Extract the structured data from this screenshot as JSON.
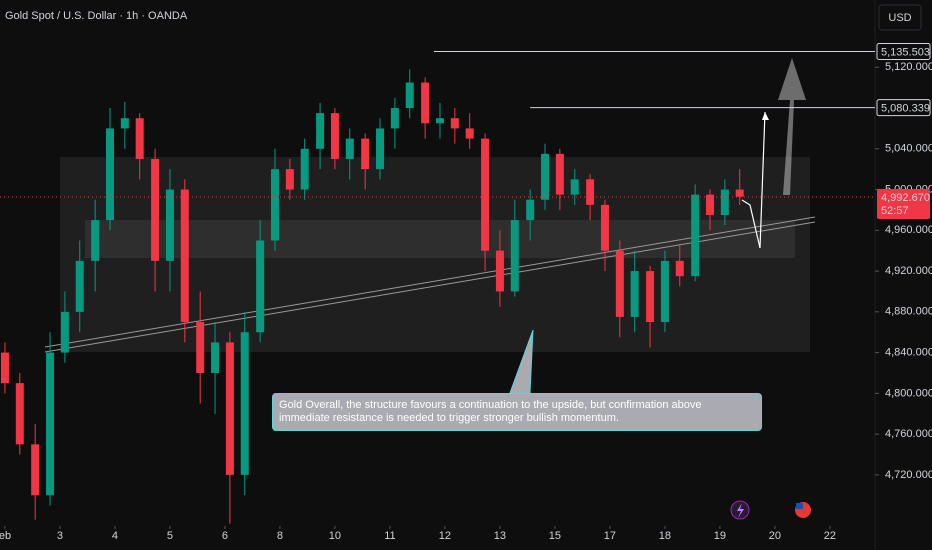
{
  "chart_data": {
    "type": "candlestick",
    "title": "Gold Spot / U.S. Dollar · 1h · OANDA",
    "currency": "USD",
    "annotation": "Gold Overall, the structure favours a continuation to the upside, but confirmation above immediate resistance is needed to trigger stronger bullish momentum.",
    "up_color": "#089981",
    "down_color": "#f23645",
    "grid": false,
    "x": [
      0,
      0.27,
      0.55,
      0.82,
      1.09,
      1.36,
      1.64,
      1.91,
      2.18,
      2.45,
      2.73,
      3.0,
      3.27,
      3.55,
      3.82,
      4.09,
      4.36,
      4.64,
      4.91,
      5.18,
      5.45,
      5.73,
      6.0,
      6.27,
      6.55,
      6.82,
      7.09,
      7.36,
      7.64,
      7.91,
      8.18,
      8.45,
      8.73,
      9.0,
      9.27,
      9.55,
      9.82,
      10.09,
      10.36,
      10.64,
      10.91,
      11.18,
      11.45,
      11.73,
      12.0,
      12.27,
      12.55,
      12.82,
      13.09,
      13.36
    ],
    "open": [
      4840,
      4810,
      4750,
      4700,
      4840,
      4880,
      4930,
      4970,
      5060,
      5070,
      5030,
      4930,
      5000,
      4870,
      4820,
      4850,
      4720,
      4860,
      4950,
      5020,
      5000,
      5040,
      5075,
      5030,
      5050,
      5020,
      5060,
      5080,
      5105,
      5065,
      5070,
      5060,
      5050,
      4940,
      4900,
      4970,
      4990,
      5035,
      4995,
      5010,
      4985,
      4940,
      4875,
      4920,
      4870,
      4930,
      4915,
      4995,
      4975,
      5000
    ],
    "high": [
      4850,
      4820,
      4770,
      4860,
      4900,
      4950,
      4990,
      5080,
      5086,
      5075,
      5040,
      5020,
      5010,
      4900,
      4870,
      4860,
      4880,
      4970,
      5040,
      5030,
      5050,
      5085,
      5080,
      5060,
      5055,
      5070,
      5090,
      5118,
      5110,
      5085,
      5080,
      5075,
      5055,
      4960,
      4990,
      5000,
      5045,
      5040,
      5020,
      5015,
      4990,
      4950,
      4940,
      4925,
      4940,
      4945,
      5005,
      5000,
      5010,
      5020
    ],
    "low": [
      4800,
      4740,
      4676,
      4690,
      4830,
      4860,
      4900,
      4960,
      5040,
      5010,
      4900,
      4900,
      4850,
      4790,
      4780,
      4672,
      4700,
      4850,
      4940,
      4990,
      4990,
      5020,
      5020,
      5010,
      5000,
      5010,
      5040,
      5070,
      5050,
      5050,
      5045,
      5040,
      4920,
      4885,
      4895,
      4950,
      4980,
      4980,
      4985,
      4970,
      4920,
      4855,
      4860,
      4845,
      4860,
      4905,
      4910,
      4960,
      4965,
      4985
    ],
    "close": [
      4810,
      4750,
      4700,
      4840,
      4880,
      4930,
      4970,
      5060,
      5070,
      5030,
      4930,
      5000,
      4870,
      4820,
      4850,
      4720,
      4860,
      4950,
      5020,
      5000,
      5040,
      5075,
      5030,
      5050,
      5020,
      5060,
      5080,
      5105,
      5065,
      5070,
      5060,
      5050,
      4940,
      4900,
      4970,
      4990,
      5035,
      4995,
      5010,
      4985,
      4940,
      4875,
      4920,
      4870,
      4930,
      4915,
      4995,
      4975,
      5000,
      4993
    ],
    "xlim": [
      -0.09,
      15.82
    ],
    "xticks": [
      {
        "value": 0,
        "label": "eb"
      },
      {
        "value": 1,
        "label": "3"
      },
      {
        "value": 2,
        "label": "4"
      },
      {
        "value": 3,
        "label": "5"
      },
      {
        "value": 4,
        "label": "6"
      },
      {
        "value": 5,
        "label": "8"
      },
      {
        "value": 6,
        "label": "10"
      },
      {
        "value": 7,
        "label": "11"
      },
      {
        "value": 8,
        "label": "12"
      },
      {
        "value": 9,
        "label": "13"
      },
      {
        "value": 10,
        "label": "15"
      },
      {
        "value": 11,
        "label": "17"
      },
      {
        "value": 12,
        "label": "18"
      },
      {
        "value": 13,
        "label": "19"
      },
      {
        "value": 14,
        "label": "20"
      },
      {
        "value": 15,
        "label": "22"
      }
    ],
    "ylim": [
      4671.8,
      5186
    ],
    "yticks": [
      {
        "value": 5120,
        "label": "5,120.000"
      },
      {
        "value": 5040,
        "label": "5,040.000"
      },
      {
        "value": 5000,
        "label": "5,000.000"
      },
      {
        "value": 4960,
        "label": "4,960.000"
      },
      {
        "value": 4920,
        "label": "4,920.000"
      },
      {
        "value": 4880,
        "label": "4,880.000"
      },
      {
        "value": 4840,
        "label": "4,840.000"
      },
      {
        "value": 4800,
        "label": "4,800.000"
      },
      {
        "value": 4760,
        "label": "4,760.000"
      },
      {
        "value": 4720,
        "label": "4,720.000"
      }
    ],
    "levels": [
      {
        "value": 5135.503,
        "label": "5,135.503",
        "start": 7.8
      },
      {
        "value": 5080.339,
        "label": "5,080.339",
        "start": 9.55
      }
    ],
    "current_price": {
      "value": 4992.67,
      "label": "4,992.670",
      "countdown": "52:57"
    }
  }
}
